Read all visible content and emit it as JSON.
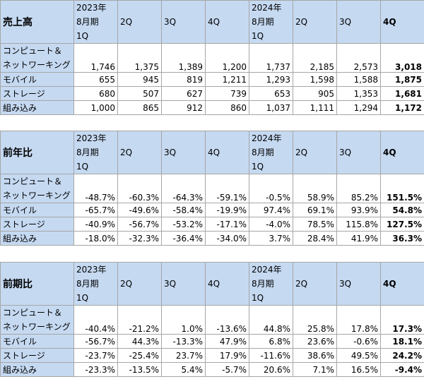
{
  "labels": {
    "computing_line1": "コンピュート＆",
    "computing_line2": "ネットワーキング",
    "mobile": "モバイル",
    "storage": "ストレージ",
    "embedded": "組み込み"
  },
  "header": {
    "y2023_line1": "2023年",
    "y2023_line2": "8月期",
    "y2024_line1": "2024年",
    "y2024_line2": "8月期",
    "q1": "1Q",
    "q2": "2Q",
    "q3": "3Q",
    "q4": "4Q"
  },
  "tables": [
    {
      "title": "売上高",
      "rows": [
        [
          "1,746",
          "1,375",
          "1,389",
          "1,200",
          "1,737",
          "2,185",
          "2,573",
          "3,018"
        ],
        [
          "655",
          "945",
          "819",
          "1,211",
          "1,293",
          "1,598",
          "1,588",
          "1,875"
        ],
        [
          "680",
          "507",
          "627",
          "739",
          "653",
          "905",
          "1,353",
          "1,681"
        ],
        [
          "1,000",
          "865",
          "912",
          "860",
          "1,037",
          "1,111",
          "1,294",
          "1,172"
        ]
      ]
    },
    {
      "title": "前年比",
      "rows": [
        [
          "-48.7%",
          "-60.3%",
          "-64.3%",
          "-59.1%",
          "-0.5%",
          "58.9%",
          "85.2%",
          "151.5%"
        ],
        [
          "-65.7%",
          "-49.6%",
          "-58.4%",
          "-19.9%",
          "97.4%",
          "69.1%",
          "93.9%",
          "54.8%"
        ],
        [
          "-40.9%",
          "-56.7%",
          "-53.2%",
          "-17.1%",
          "-4.0%",
          "78.5%",
          "115.8%",
          "127.5%"
        ],
        [
          "-18.0%",
          "-32.3%",
          "-36.4%",
          "-34.0%",
          "3.7%",
          "28.4%",
          "41.9%",
          "36.3%"
        ]
      ]
    },
    {
      "title": "前期比",
      "rows": [
        [
          "-40.4%",
          "-21.2%",
          "1.0%",
          "-13.6%",
          "44.8%",
          "25.8%",
          "17.8%",
          "17.3%"
        ],
        [
          "-56.7%",
          "44.3%",
          "-13.3%",
          "47.9%",
          "6.8%",
          "23.6%",
          "-0.6%",
          "18.1%"
        ],
        [
          "-23.7%",
          "-25.4%",
          "23.7%",
          "17.9%",
          "-11.6%",
          "38.6%",
          "49.5%",
          "24.2%"
        ],
        [
          "-23.3%",
          "-13.5%",
          "5.4%",
          "-5.7%",
          "20.6%",
          "7.1%",
          "16.5%",
          "-9.4%"
        ]
      ]
    }
  ]
}
